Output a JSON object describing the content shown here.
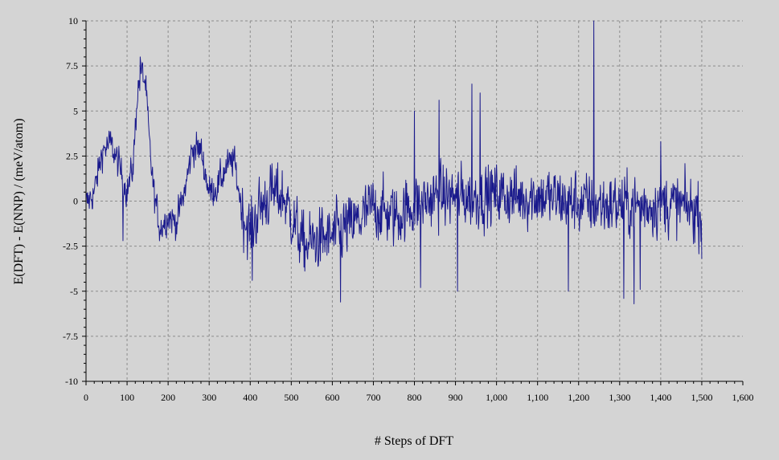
{
  "colors": {
    "background": "#d4d4d4",
    "line": "#1a1a8c",
    "grid": "#8c8c8c",
    "axis": "#000000"
  },
  "chart_data": {
    "type": "line",
    "title": "",
    "xlabel": "# Steps of DFT",
    "ylabel": "E(DFT) - E(NNP) / (meV/atom)",
    "xlim": [
      0,
      1600
    ],
    "ylim": [
      -10,
      10
    ],
    "x_ticks": [
      0,
      100,
      200,
      300,
      400,
      500,
      600,
      700,
      800,
      900,
      1000,
      1100,
      1200,
      1300,
      1400,
      1500,
      1600
    ],
    "x_tick_labels": [
      "0",
      "100",
      "200",
      "300",
      "400",
      "500",
      "600",
      "700",
      "800",
      "900",
      "1,000",
      "1,100",
      "1,200",
      "1,300",
      "1,400",
      "1,500",
      "1,600"
    ],
    "y_ticks": [
      10,
      7.5,
      5,
      2.5,
      0,
      -2.5,
      -5,
      -7.5,
      -10
    ],
    "y_tick_labels": [
      "10",
      "7.5",
      "5",
      "2.5",
      "0",
      "-2.5",
      "-5",
      "-7.5",
      "-10"
    ],
    "grid": true,
    "series": [
      {
        "x_start": 0,
        "x_end": 1500,
        "n_points": 1501,
        "envelope_x": [
          0,
          20,
          40,
          60,
          80,
          100,
          115,
          125,
          135,
          145,
          155,
          165,
          180,
          200,
          220,
          240,
          260,
          280,
          300,
          320,
          340,
          360,
          380,
          400,
          420,
          450,
          480,
          500,
          530,
          560,
          600,
          630,
          660,
          700,
          730,
          760,
          800,
          850,
          900,
          950,
          1000,
          1050,
          1100,
          1150,
          1200,
          1250,
          1300,
          1350,
          1400,
          1450,
          1500
        ],
        "envelope_y": [
          -0.2,
          0.5,
          2.8,
          3.2,
          2.0,
          0.5,
          2.0,
          6.0,
          7.2,
          6.5,
          3.0,
          0.5,
          -1.5,
          -0.8,
          -1.2,
          0.5,
          3.0,
          2.8,
          0.5,
          0.8,
          1.8,
          2.3,
          -0.5,
          -1.8,
          -0.5,
          0.4,
          0.3,
          -0.8,
          -2.5,
          -2.2,
          -2.0,
          -1.5,
          -1.2,
          -0.3,
          -0.7,
          -0.8,
          -0.2,
          0.2,
          0.3,
          0.2,
          0.4,
          0.2,
          0.3,
          0.1,
          -0.1,
          -0.2,
          -0.2,
          -0.3,
          -0.1,
          -0.3,
          -0.6
        ],
        "spikes": [
          {
            "x": 90,
            "y": -2.2
          },
          {
            "x": 132,
            "y": 8.0
          },
          {
            "x": 405,
            "y": -4.4
          },
          {
            "x": 620,
            "y": -5.6
          },
          {
            "x": 800,
            "y": 5.0
          },
          {
            "x": 815,
            "y": -4.8
          },
          {
            "x": 860,
            "y": 5.6
          },
          {
            "x": 905,
            "y": -5.0
          },
          {
            "x": 940,
            "y": 6.5
          },
          {
            "x": 960,
            "y": 6.0
          },
          {
            "x": 1175,
            "y": -5.0
          },
          {
            "x": 1237,
            "y": 10.0
          },
          {
            "x": 1310,
            "y": -5.4
          },
          {
            "x": 1335,
            "y": -5.7
          },
          {
            "x": 1350,
            "y": -4.9
          },
          {
            "x": 1400,
            "y": 3.3
          },
          {
            "x": 1500,
            "y": -3.2
          }
        ]
      }
    ]
  }
}
